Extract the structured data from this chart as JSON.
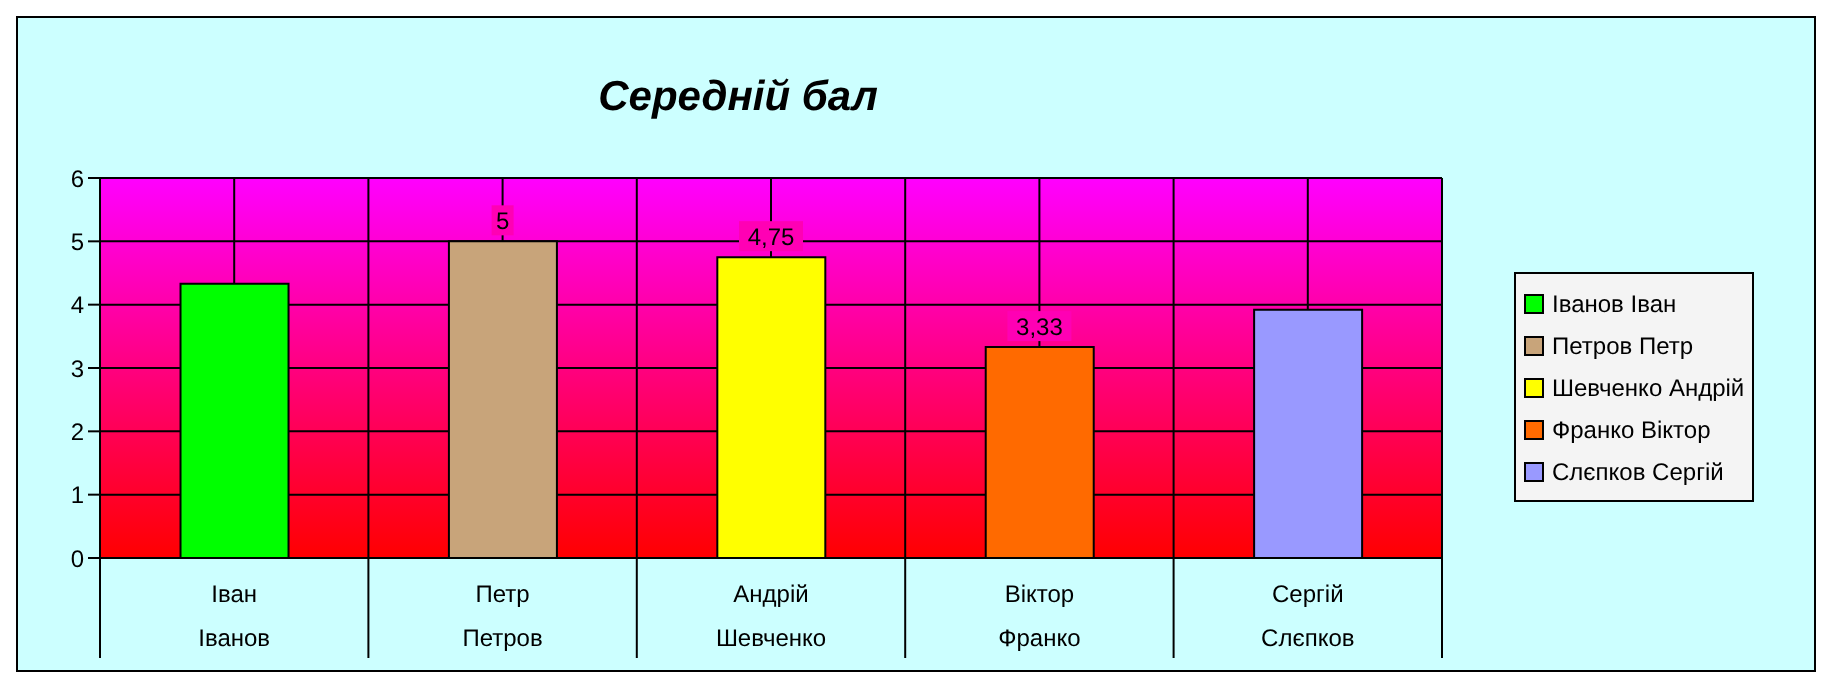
{
  "chart_data": {
    "type": "bar",
    "title": "Середній бал",
    "categories": [
      "Іван\nІванов",
      "Петр\nПетров",
      "Андрій\nШевченко",
      "Віктор\nФранко",
      "Сергій\nСлєпков"
    ],
    "series": [
      {
        "name": "Іванов Іван",
        "color": "#00ff00",
        "values": [
          4.33,
          null,
          null,
          null,
          null
        ],
        "value_labels": [
          null,
          null,
          null,
          null,
          null
        ]
      },
      {
        "name": "Петров Петр",
        "color": "#c8a47a",
        "values": [
          null,
          5,
          null,
          null,
          null
        ],
        "value_labels": [
          null,
          "5",
          null,
          null,
          null
        ]
      },
      {
        "name": "Шевченко Андрій",
        "color": "#ffff00",
        "values": [
          null,
          null,
          4.75,
          null,
          null
        ],
        "value_labels": [
          null,
          null,
          "4,75",
          null,
          null
        ]
      },
      {
        "name": "Франко Віктор",
        "color": "#ff6a00",
        "values": [
          null,
          null,
          null,
          3.33,
          null
        ],
        "value_labels": [
          null,
          null,
          null,
          "3,33",
          null
        ]
      },
      {
        "name": "Слєпков Сергій",
        "color": "#9999ff",
        "values": [
          null,
          null,
          null,
          null,
          3.92
        ],
        "value_labels": [
          null,
          null,
          null,
          null,
          null
        ]
      }
    ],
    "stacked": true,
    "ylim": [
      0,
      6
    ],
    "yticks": [
      0,
      1,
      2,
      3,
      4,
      5,
      6
    ],
    "grid": true,
    "legend": "right"
  }
}
